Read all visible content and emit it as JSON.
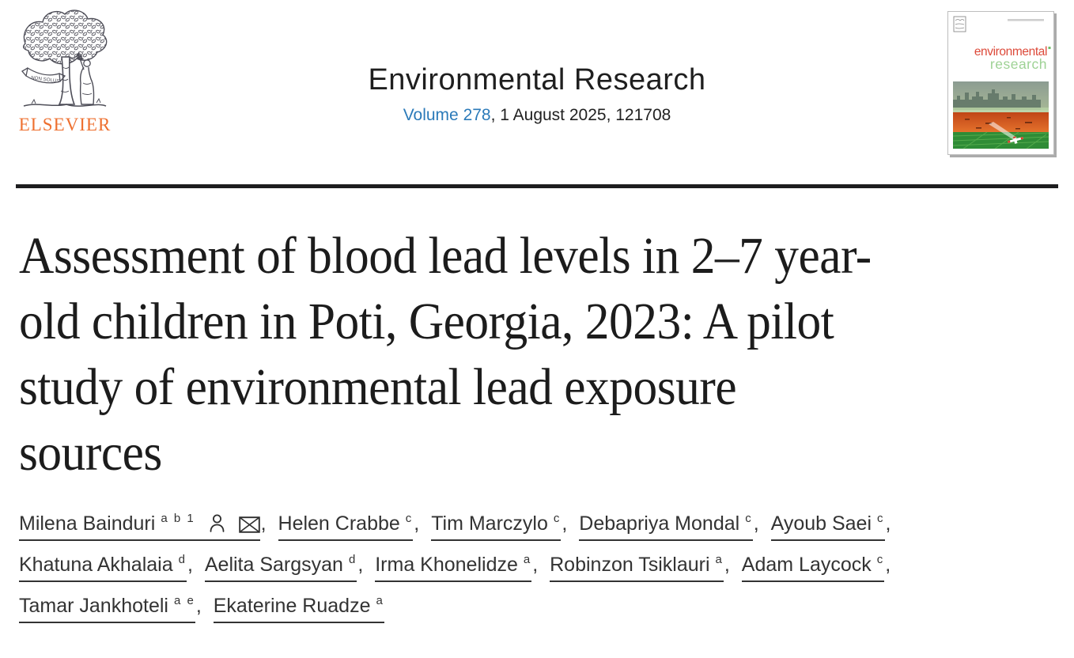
{
  "colors": {
    "link_blue": "#2b7ab9",
    "elsevier_orange": "#ee7030",
    "rule_dark": "#1d1d1f",
    "text_dark": "#212121",
    "cover_red": "#dd4a3a",
    "cover_green": "#9ed295"
  },
  "header": {
    "journal_title": "Environmental Research",
    "volume_link": "Volume 278",
    "issue_meta": ", 1 August 2025, 121708",
    "elsevier_wordmark": "ELSEVIER",
    "logo_banner": "NON SOLUS"
  },
  "cover": {
    "title_line1": "environmental",
    "title_line2": "research"
  },
  "article": {
    "title_lines": [
      "Assessment of blood lead levels in 2–7 year-",
      "old children in Poti, Georgia, 2023: A pilot",
      "study of environmental lead exposure",
      "sources"
    ]
  },
  "authors": {
    "separator": ", ",
    "rows": [
      [
        {
          "name": "Milena Bainduri",
          "sups": "a b 1",
          "icons": [
            "person-icon",
            "envelope-icon"
          ],
          "comma": true
        },
        {
          "name": "Helen Crabbe",
          "sups": "c",
          "comma": true
        },
        {
          "name": "Tim Marczylo",
          "sups": "c",
          "comma": true
        },
        {
          "name": "Debapriya Mondal",
          "sups": "c",
          "comma": true
        },
        {
          "name": "Ayoub Saei",
          "sups": "c",
          "comma": true
        }
      ],
      [
        {
          "name": "Khatuna Akhalaia",
          "sups": "d",
          "comma": true
        },
        {
          "name": "Aelita Sargsyan",
          "sups": "d",
          "comma": true
        },
        {
          "name": "Irma Khonelidze",
          "sups": "a",
          "comma": true
        },
        {
          "name": "Robinzon Tsiklauri",
          "sups": "a",
          "comma": true
        },
        {
          "name": "Adam Laycock",
          "sups": "c",
          "comma": true
        }
      ],
      [
        {
          "name": "Tamar Jankhoteli",
          "sups": "a e",
          "comma": true
        },
        {
          "name": "Ekaterine Ruadze",
          "sups": "a",
          "comma": false
        }
      ]
    ]
  }
}
